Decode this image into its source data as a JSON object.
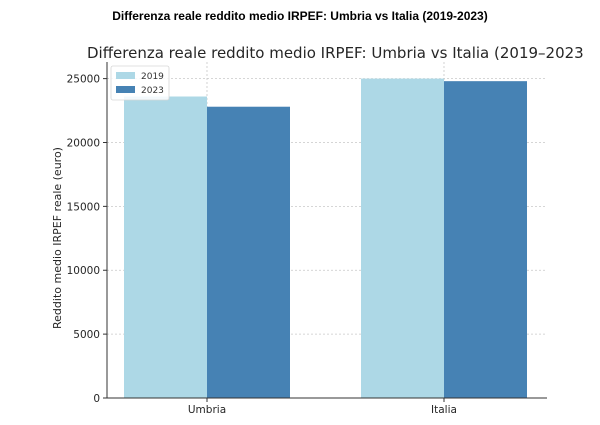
{
  "page": {
    "heading": "Differenza reale reddito medio IRPEF: Umbria vs Italia (2019-2023)"
  },
  "chart_data": {
    "type": "bar",
    "title": "Differenza reale reddito medio IRPEF: Umbria vs Italia (2019–2023",
    "xlabel": "",
    "ylabel": "Reddito medio IRPEF reale (euro)",
    "categories": [
      "Umbria",
      "Italia"
    ],
    "series": [
      {
        "name": "2019",
        "values": [
          23600,
          25000
        ],
        "color": "#add8e6"
      },
      {
        "name": "2023",
        "values": [
          22800,
          24800
        ],
        "color": "#4682b4"
      }
    ],
    "ylim": [
      0,
      26300
    ],
    "yticks": [
      0,
      5000,
      10000,
      15000,
      20000,
      25000
    ],
    "grid": true,
    "legend": "top-left"
  }
}
